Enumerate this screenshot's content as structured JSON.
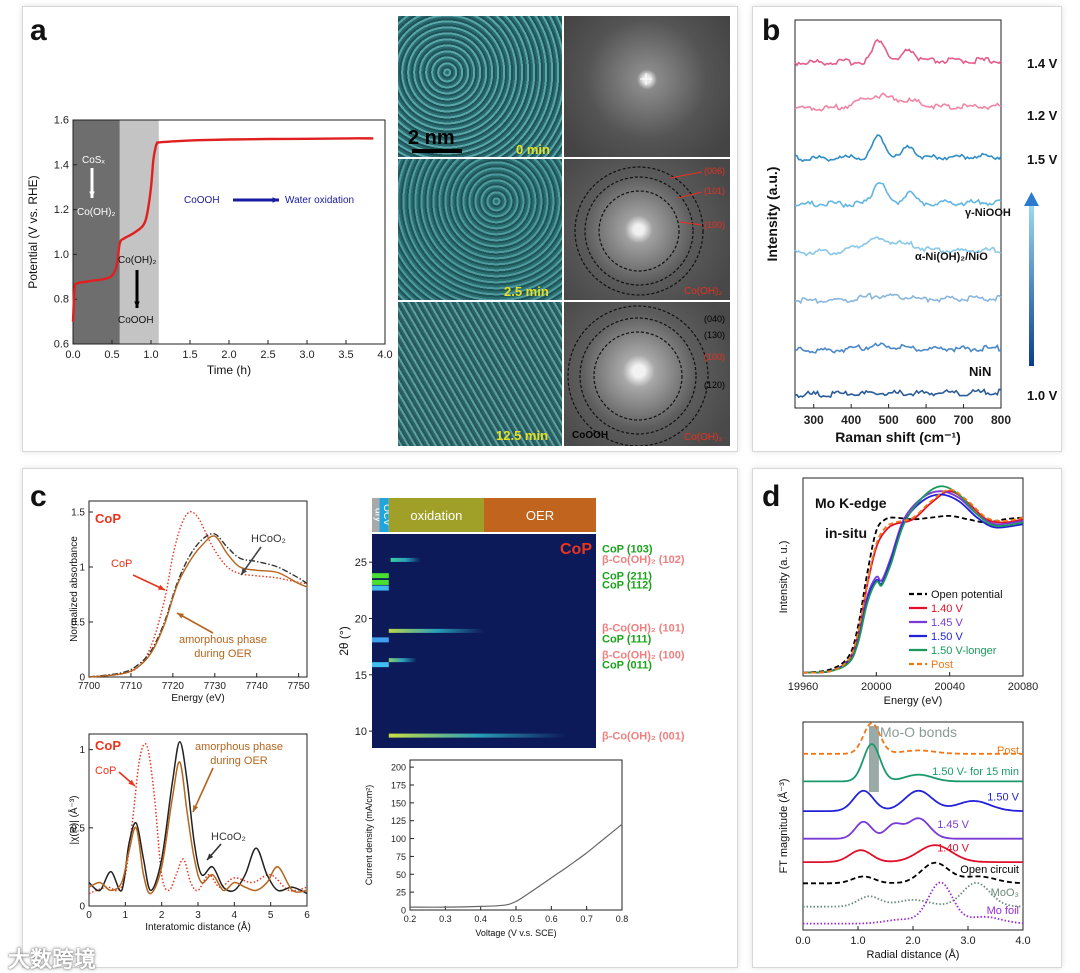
{
  "panels": {
    "a": "a",
    "b": "b",
    "c": "c",
    "d": "d"
  },
  "watermark": "大数跨境",
  "chart_data": [
    {
      "id": "a-potential",
      "type": "line",
      "xlabel": "Time (h)",
      "ylabel": "Potential (V vs. RHE)",
      "xlim": [
        0,
        4.0
      ],
      "ylim": [
        0.6,
        1.6
      ],
      "xticks": [
        "0.0",
        "0.5",
        "1.0",
        "1.5",
        "2.0",
        "2.5",
        "3.0",
        "3.5",
        "4.0"
      ],
      "yticks": [
        "0.6",
        "0.8",
        "1.0",
        "1.2",
        "1.4",
        "1.6"
      ],
      "regions": [
        {
          "x0": 0.0,
          "x1": 0.6,
          "color": "#6e6e6e"
        },
        {
          "x0": 0.6,
          "x1": 1.1,
          "color": "#c4c4c4"
        }
      ],
      "series": [
        {
          "color": "#e02020",
          "x": [
            0.0,
            0.02,
            0.05,
            0.1,
            0.2,
            0.3,
            0.4,
            0.5,
            0.56,
            0.6,
            0.65,
            0.7,
            0.8,
            0.9,
            0.95,
            1.0,
            1.03,
            1.06,
            1.08,
            1.1,
            1.3,
            1.6,
            2.0,
            2.5,
            3.0,
            3.5,
            3.85
          ],
          "y": [
            0.7,
            0.85,
            0.87,
            0.875,
            0.88,
            0.885,
            0.89,
            0.905,
            0.95,
            1.05,
            1.07,
            1.08,
            1.1,
            1.13,
            1.18,
            1.3,
            1.42,
            1.48,
            1.497,
            1.5,
            1.505,
            1.51,
            1.513,
            1.515,
            1.516,
            1.518,
            1.518
          ]
        }
      ],
      "annotations": {
        "cosx": "CoSₓ",
        "cooh2_1": "Co(OH)₂",
        "cooh2_2": "Co(OH)₂",
        "coooh": "CoOOH",
        "flow_left": "CoOOH",
        "flow_right": "Water oxidation"
      }
    },
    {
      "id": "a-tem",
      "type": "other",
      "labels": {
        "scale": "2 nm",
        "t0": "0 min",
        "t1": "2.5 min",
        "t2": "12.5 min",
        "fft1": "Co(OH)₂",
        "fft2_phase": "CoOOH",
        "fft2": "Co(OH)₂"
      },
      "fft_indices_1": [
        "(006)",
        "(101)",
        "(100)"
      ],
      "fft_indices_2": [
        "(040)",
        "(130)",
        "(100)",
        "(120)"
      ]
    },
    {
      "id": "b-raman",
      "type": "line",
      "xlabel": "Raman shift (cm⁻¹)",
      "ylabel": "Intensity (a.u.)",
      "xlim": [
        250,
        800
      ],
      "xticks": [
        "300",
        "400",
        "500",
        "600",
        "700",
        "800"
      ],
      "series": [
        {
          "label": "1.4 V",
          "color": "#e65c8c",
          "peaks": "strong"
        },
        {
          "label": "1.2 V",
          "color": "#ef86a6",
          "peaks": "broad"
        },
        {
          "label": "1.5 V",
          "color": "#2f8ec6",
          "peaks": "strong"
        },
        {
          "label": "γ-NiOOH",
          "color": "#62b6e2",
          "peaks": "strong"
        },
        {
          "label": "α-Ni(OH)₂/NiO",
          "color": "#8ac8ea",
          "peaks": "broad"
        },
        {
          "label": "",
          "color": "#8ab6de",
          "peaks": "weak"
        },
        {
          "label": "",
          "color": "#4a88c8",
          "peaks": "weak"
        },
        {
          "label": "NiN",
          "color": "#2a5c9a",
          "peaks": "none"
        },
        {
          "label": "1.0 V",
          "color": "#174a86",
          "peaks": "none"
        }
      ]
    },
    {
      "id": "c-xanes",
      "type": "line",
      "title": "CoP",
      "xlabel": "Energy (eV)",
      "ylabel": "Normalized absorbance",
      "xlim": [
        7700,
        7752
      ],
      "ylim": [
        0,
        1.6
      ],
      "xticks": [
        "7700",
        "7710",
        "7720",
        "7730",
        "7740",
        "7750"
      ],
      "yticks": [
        "0",
        "0.5",
        "1",
        "1.5"
      ],
      "series": [
        {
          "name": "CoP",
          "color": "#e8351e",
          "dash": "dot",
          "x": [
            7700,
            7708,
            7712,
            7715,
            7718,
            7720,
            7722,
            7724,
            7726,
            7728,
            7730,
            7733,
            7736,
            7740,
            7745,
            7750,
            7752
          ],
          "y": [
            0.0,
            0.03,
            0.1,
            0.3,
            0.7,
            1.1,
            1.38,
            1.5,
            1.45,
            1.3,
            1.15,
            1.0,
            0.94,
            0.92,
            0.9,
            0.86,
            0.85
          ]
        },
        {
          "name": "HCoO₂",
          "color": "#333333",
          "dash": "dashdot",
          "x": [
            7700,
            7708,
            7712,
            7715,
            7718,
            7721,
            7724,
            7727,
            7730,
            7733,
            7736,
            7740,
            7745,
            7750,
            7752
          ],
          "y": [
            0.0,
            0.04,
            0.12,
            0.25,
            0.5,
            0.85,
            1.1,
            1.25,
            1.3,
            1.18,
            1.08,
            1.05,
            1.0,
            0.9,
            0.85
          ]
        },
        {
          "name": "amorphous phase during OER",
          "color": "#b5651d",
          "dash": "solid",
          "x": [
            7700,
            7708,
            7712,
            7715,
            7718,
            7721,
            7724,
            7727,
            7730,
            7733,
            7736,
            7740,
            7745,
            7750,
            7752
          ],
          "y": [
            0.0,
            0.03,
            0.1,
            0.23,
            0.48,
            0.83,
            1.05,
            1.2,
            1.28,
            1.12,
            1.0,
            0.97,
            0.95,
            0.85,
            0.82
          ]
        }
      ],
      "annotations": {
        "cop": "CoP",
        "hcoo2": "HCoO₂",
        "amorphous1": "amorphous phase",
        "amorphous2": "during OER"
      }
    },
    {
      "id": "c-exafs",
      "type": "line",
      "title": "CoP",
      "xlabel": "Interatomic distance (Å)",
      "ylabel": "|χ(R)| (Å⁻³)",
      "xlim": [
        0,
        6
      ],
      "ylim": [
        0,
        1.1
      ],
      "xticks": [
        "0",
        "1",
        "2",
        "3",
        "4",
        "5",
        "6"
      ],
      "yticks": [
        "0",
        "0.5",
        "1"
      ],
      "series": [
        {
          "name": "CoP",
          "color": "#e8351e",
          "dash": "dot",
          "x": [
            0,
            0.5,
            0.8,
            1.0,
            1.2,
            1.4,
            1.6,
            1.8,
            2.0,
            2.2,
            2.4,
            2.6,
            2.8,
            3.0,
            3.3,
            3.6,
            4.0,
            4.5,
            5.0,
            5.5,
            6.0
          ],
          "y": [
            0.08,
            0.12,
            0.1,
            0.2,
            0.55,
            0.95,
            1.02,
            0.7,
            0.2,
            0.1,
            0.2,
            0.3,
            0.15,
            0.1,
            0.2,
            0.12,
            0.18,
            0.15,
            0.2,
            0.1,
            0.12
          ]
        },
        {
          "name": "HCoO₂",
          "color": "#222222",
          "dash": "solid",
          "x": [
            0,
            0.3,
            0.6,
            0.9,
            1.1,
            1.3,
            1.5,
            1.7,
            2.0,
            2.3,
            2.5,
            2.7,
            2.9,
            3.1,
            3.4,
            3.7,
            4.0,
            4.3,
            4.6,
            4.9,
            5.2,
            5.6,
            6.0
          ],
          "y": [
            0.15,
            0.1,
            0.22,
            0.1,
            0.4,
            0.53,
            0.3,
            0.1,
            0.3,
            0.8,
            1.05,
            0.8,
            0.4,
            0.2,
            0.25,
            0.12,
            0.1,
            0.2,
            0.37,
            0.2,
            0.1,
            0.12,
            0.08
          ]
        },
        {
          "name": "amorphous phase during OER",
          "color": "#b5651d",
          "dash": "solid",
          "x": [
            0,
            0.3,
            0.6,
            0.9,
            1.1,
            1.3,
            1.5,
            1.7,
            2.0,
            2.3,
            2.5,
            2.7,
            2.9,
            3.1,
            3.4,
            3.7,
            4.0,
            4.3,
            4.6,
            4.9,
            5.2,
            5.6,
            6.0
          ],
          "y": [
            0.12,
            0.15,
            0.1,
            0.15,
            0.35,
            0.5,
            0.2,
            0.08,
            0.25,
            0.7,
            0.92,
            0.6,
            0.3,
            0.15,
            0.2,
            0.1,
            0.15,
            0.12,
            0.1,
            0.15,
            0.25,
            0.1,
            0.1
          ]
        }
      ],
      "annotations": {
        "cop": "CoP",
        "hcoo2": "HCoO₂",
        "amorphous1": "amorphous phase",
        "amorphous2": "during OER"
      }
    },
    {
      "id": "c-insitu-xrd",
      "type": "heatmap",
      "title": "CoP",
      "ylabel": "2θ (°)",
      "ylim": [
        8.5,
        27.5
      ],
      "yticks": [
        "10",
        "15",
        "20",
        "25"
      ],
      "stages": [
        {
          "label": "dry",
          "color": "#a9a9a9",
          "x0": 0.2,
          "x1": 0.22
        },
        {
          "label": "OCV",
          "color": "#22a5dc",
          "x0": 0.22,
          "x1": 0.245
        },
        {
          "label": "oxidation",
          "color": "#a0a028",
          "x0": 0.245,
          "x1": 0.5
        },
        {
          "label": "OER",
          "color": "#c0641e",
          "x0": 0.5,
          "x1": 0.8
        }
      ],
      "peak_labels": [
        {
          "text": "CoP (103)",
          "color": "#1aa31a",
          "y": 26.2
        },
        {
          "text": "β-Co(OH)₂ (102)",
          "color": "#f08080",
          "y": 25.3
        },
        {
          "text": "CoP (211)",
          "color": "#1aa31a",
          "y": 23.8
        },
        {
          "text": "CoP (112)",
          "color": "#1aa31a",
          "y": 23.0
        },
        {
          "text": "β-Co(OH)₂ (101)",
          "color": "#f08080",
          "y": 19.2
        },
        {
          "text": "CoP (111)",
          "color": "#1aa31a",
          "y": 18.2
        },
        {
          "text": "β-Co(OH)₂ (100)",
          "color": "#f08080",
          "y": 16.8
        },
        {
          "text": "CoP (011)",
          "color": "#1aa31a",
          "y": 15.9
        },
        {
          "text": "β-Co(OH)₂ (001)",
          "color": "#f08080",
          "y": 9.6
        }
      ]
    },
    {
      "id": "c-lsv",
      "type": "line",
      "xlabel": "Voltage (V v.s. SCE)",
      "ylabel": "Current density (mA/cm²)",
      "xlim": [
        0.2,
        0.8
      ],
      "ylim": [
        0,
        210
      ],
      "xticks": [
        "0.2",
        "0.3",
        "0.4",
        "0.5",
        "0.6",
        "0.7",
        "0.8"
      ],
      "yticks": [
        "0",
        "25",
        "50",
        "75",
        "100",
        "125",
        "150",
        "175",
        "200"
      ],
      "series": [
        {
          "color": "#666666",
          "x": [
            0.2,
            0.3,
            0.4,
            0.45,
            0.48,
            0.5,
            0.52,
            0.55,
            0.6,
            0.65,
            0.7,
            0.75,
            0.8
          ],
          "y": [
            4,
            4,
            5,
            6,
            8,
            12,
            18,
            28,
            45,
            62,
            80,
            100,
            120
          ]
        }
      ]
    },
    {
      "id": "d-xanes",
      "type": "line",
      "xlabel": "Energy (eV)",
      "ylabel": "Intensity (a. u.)",
      "xlim": [
        19960,
        20080
      ],
      "xticks": [
        "19960",
        "20000",
        "20040",
        "20080"
      ],
      "annotations": {
        "edge": "Mo K-edge",
        "insitu": "in-situ"
      },
      "series": [
        {
          "name": "Open potential",
          "color": "#000000",
          "dash": "dash",
          "x": [
            19960,
            19975,
            19985,
            19990,
            19995,
            20000,
            20005,
            20010,
            20020,
            20030,
            20040,
            20050,
            20060,
            20070,
            20080
          ],
          "y": [
            0.02,
            0.04,
            0.12,
            0.3,
            0.62,
            0.88,
            0.95,
            0.96,
            0.95,
            0.96,
            0.97,
            0.95,
            0.93,
            0.95,
            0.96
          ]
        },
        {
          "name": "1.40 V",
          "color": "#e0102a",
          "dash": "solid",
          "x": [
            19960,
            19975,
            19985,
            19990,
            19995,
            20000,
            20005,
            20010,
            20020,
            20030,
            20040,
            20050,
            20060,
            20070,
            20080
          ],
          "y": [
            0.02,
            0.03,
            0.1,
            0.25,
            0.55,
            0.78,
            0.88,
            0.92,
            0.95,
            1.05,
            1.12,
            1.05,
            0.95,
            0.93,
            0.95
          ]
        },
        {
          "name": "1.45 V",
          "color": "#7a3ad8",
          "dash": "solid",
          "x": [
            19960,
            19975,
            19985,
            19990,
            19995,
            20000,
            20003,
            20008,
            20015,
            20025,
            20035,
            20045,
            20055,
            20065,
            20080
          ],
          "y": [
            0.02,
            0.03,
            0.09,
            0.22,
            0.48,
            0.6,
            0.58,
            0.72,
            0.95,
            1.08,
            1.12,
            1.08,
            0.98,
            0.92,
            0.94
          ]
        },
        {
          "name": "1.50 V",
          "color": "#2222d8",
          "dash": "solid",
          "x": [
            19960,
            19975,
            19985,
            19990,
            19995,
            20000,
            20003,
            20008,
            20015,
            20025,
            20035,
            20045,
            20055,
            20065,
            20080
          ],
          "y": [
            0.02,
            0.03,
            0.09,
            0.21,
            0.46,
            0.58,
            0.56,
            0.7,
            0.93,
            1.06,
            1.1,
            1.06,
            0.96,
            0.9,
            0.92
          ]
        },
        {
          "name": "1.50 V-longer",
          "color": "#1a9a5a",
          "dash": "solid",
          "x": [
            19960,
            19975,
            19985,
            19990,
            19995,
            20000,
            20003,
            20008,
            20015,
            20025,
            20035,
            20045,
            20055,
            20065,
            20080
          ],
          "y": [
            0.02,
            0.03,
            0.08,
            0.2,
            0.44,
            0.57,
            0.55,
            0.68,
            0.92,
            1.08,
            1.15,
            1.1,
            0.98,
            0.91,
            0.93
          ]
        },
        {
          "name": "Post",
          "color": "#f07818",
          "dash": "dash",
          "x": [
            19960,
            19975,
            19985,
            19990,
            19995,
            20000,
            20005,
            20010,
            20020,
            20030,
            20040,
            20050,
            20060,
            20070,
            20080
          ],
          "y": [
            0.02,
            0.03,
            0.1,
            0.26,
            0.56,
            0.8,
            0.9,
            0.93,
            0.96,
            1.06,
            1.13,
            1.06,
            0.96,
            0.94,
            0.96
          ]
        }
      ]
    },
    {
      "id": "d-ft",
      "type": "line",
      "xlabel": "Radial distance (Å)",
      "ylabel": "FT magnitude (Å⁻³)",
      "xlim": [
        0,
        4.0
      ],
      "xticks": [
        "0.0",
        "1.0",
        "2.0",
        "3.0",
        "4.0"
      ],
      "band": {
        "x0": 1.2,
        "x1": 1.38,
        "label": "Mo-O bonds",
        "color": "#9aaaa6"
      },
      "series": [
        {
          "name": "Post",
          "color": "#f07818",
          "dash": "dash",
          "offset": 8.0
        },
        {
          "name": "1.50 V- for 15 min",
          "color": "#1a9a6a",
          "dash": "solid",
          "offset": 6.7
        },
        {
          "name": "1.50 V",
          "color": "#2222d8",
          "dash": "solid",
          "offset": 5.3
        },
        {
          "name": "1.45 V",
          "color": "#7a3ad8",
          "dash": "solid",
          "offset": 4.0
        },
        {
          "name": "1.40 V",
          "color": "#e0102a",
          "dash": "solid",
          "offset": 2.9
        },
        {
          "name": "Open circuit",
          "color": "#000000",
          "dash": "dash",
          "offset": 1.9
        },
        {
          "name": "MoO₃",
          "color": "#6a8a7a",
          "dash": "dot",
          "offset": 0.8
        },
        {
          "name": "Mo foil",
          "color": "#9a2ad8",
          "dash": "dot",
          "offset": 0.0
        }
      ]
    }
  ]
}
